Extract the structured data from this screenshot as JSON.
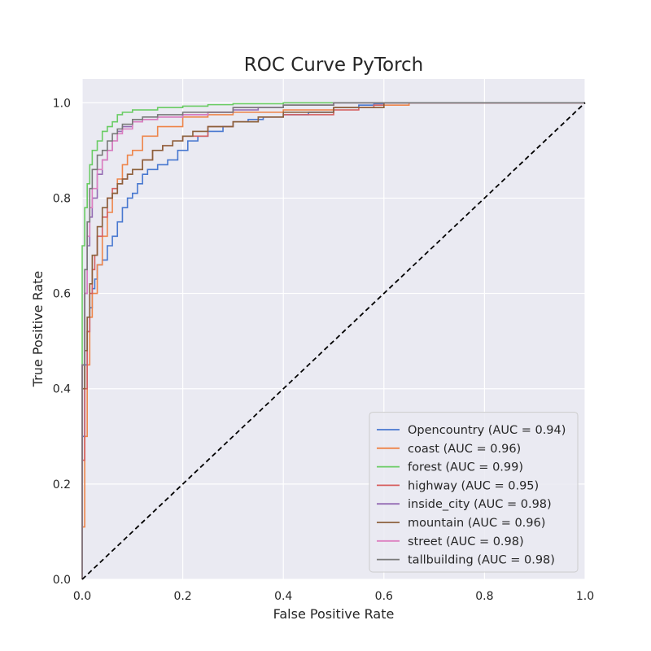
{
  "chart_data": {
    "type": "line",
    "title": "ROC Curve PyTorch",
    "xlabel": "False Positive Rate",
    "ylabel": "True Positive Rate",
    "xlim": [
      0.0,
      1.0
    ],
    "ylim": [
      0.0,
      1.05
    ],
    "xticks": [
      "0.0",
      "0.2",
      "0.4",
      "0.6",
      "0.8",
      "1.0"
    ],
    "yticks": [
      "0.0",
      "0.2",
      "0.4",
      "0.6",
      "0.8",
      "1.0"
    ],
    "grid": true,
    "legend_position": "lower-right",
    "background_color": "#eaeaf2",
    "grid_color": "#ffffff",
    "diagonal": {
      "x": [
        0,
        1
      ],
      "y": [
        0,
        1
      ],
      "style": "dashed",
      "color": "#000000"
    },
    "series": [
      {
        "name": "Opencountry (AUC = 0.94)",
        "color": "#4878d0",
        "x": [
          0,
          0,
          0.005,
          0.01,
          0.015,
          0.02,
          0.025,
          0.03,
          0.04,
          0.05,
          0.06,
          0.07,
          0.08,
          0.09,
          0.1,
          0.11,
          0.12,
          0.13,
          0.15,
          0.17,
          0.19,
          0.21,
          0.23,
          0.25,
          0.28,
          0.3,
          0.33,
          0.36,
          0.4,
          0.45,
          0.5,
          0.55,
          0.58,
          0.6,
          0.65,
          1.0
        ],
        "y": [
          0,
          0.3,
          0.45,
          0.52,
          0.57,
          0.61,
          0.63,
          0.66,
          0.67,
          0.7,
          0.72,
          0.75,
          0.78,
          0.8,
          0.81,
          0.83,
          0.85,
          0.86,
          0.87,
          0.88,
          0.9,
          0.92,
          0.93,
          0.94,
          0.95,
          0.96,
          0.965,
          0.97,
          0.975,
          0.98,
          0.99,
          0.995,
          0.998,
          1.0,
          1.0,
          1.0
        ]
      },
      {
        "name": "coast (AUC = 0.96)",
        "color": "#ee854a",
        "x": [
          0,
          0,
          0.005,
          0.01,
          0.015,
          0.02,
          0.03,
          0.04,
          0.05,
          0.06,
          0.07,
          0.08,
          0.09,
          0.1,
          0.12,
          0.15,
          0.2,
          0.25,
          0.3,
          0.4,
          0.5,
          0.6,
          0.65,
          1.0
        ],
        "y": [
          0,
          0.11,
          0.3,
          0.45,
          0.55,
          0.6,
          0.66,
          0.72,
          0.77,
          0.81,
          0.84,
          0.87,
          0.89,
          0.9,
          0.93,
          0.95,
          0.97,
          0.975,
          0.98,
          0.985,
          0.99,
          0.995,
          1.0,
          1.0
        ]
      },
      {
        "name": "forest (AUC = 0.99)",
        "color": "#6acc64",
        "x": [
          0,
          0,
          0.005,
          0.01,
          0.015,
          0.02,
          0.03,
          0.04,
          0.05,
          0.06,
          0.07,
          0.08,
          0.1,
          0.15,
          0.2,
          0.25,
          0.3,
          0.4,
          1.0
        ],
        "y": [
          0,
          0.7,
          0.78,
          0.83,
          0.87,
          0.9,
          0.92,
          0.94,
          0.95,
          0.96,
          0.975,
          0.98,
          0.985,
          0.99,
          0.993,
          0.996,
          0.998,
          1.0,
          1.0
        ]
      },
      {
        "name": "highway (AUC = 0.95)",
        "color": "#d65f5f",
        "x": [
          0,
          0,
          0.005,
          0.01,
          0.015,
          0.02,
          0.025,
          0.03,
          0.04,
          0.05,
          0.06,
          0.07,
          0.08,
          0.09,
          0.1,
          0.12,
          0.14,
          0.16,
          0.18,
          0.2,
          0.25,
          0.3,
          0.35,
          0.4,
          0.5,
          0.55,
          0.58,
          0.6,
          1.0
        ],
        "y": [
          0,
          0.25,
          0.4,
          0.52,
          0.6,
          0.65,
          0.68,
          0.72,
          0.76,
          0.8,
          0.82,
          0.83,
          0.84,
          0.85,
          0.86,
          0.88,
          0.9,
          0.91,
          0.92,
          0.93,
          0.95,
          0.96,
          0.97,
          0.975,
          0.985,
          0.99,
          0.995,
          1.0,
          1.0
        ]
      },
      {
        "name": "inside_city (AUC = 0.98)",
        "color": "#956cb4",
        "x": [
          0,
          0,
          0.005,
          0.01,
          0.015,
          0.02,
          0.03,
          0.04,
          0.05,
          0.06,
          0.07,
          0.08,
          0.1,
          0.12,
          0.15,
          0.2,
          0.25,
          0.3,
          0.35,
          0.4,
          0.5,
          1.0
        ],
        "y": [
          0,
          0.45,
          0.6,
          0.7,
          0.76,
          0.8,
          0.85,
          0.88,
          0.9,
          0.92,
          0.94,
          0.95,
          0.96,
          0.965,
          0.97,
          0.975,
          0.98,
          0.985,
          0.99,
          0.995,
          1.0,
          1.0
        ]
      },
      {
        "name": "mountain (AUC = 0.96)",
        "color": "#8c613c",
        "x": [
          0,
          0,
          0.005,
          0.01,
          0.015,
          0.02,
          0.03,
          0.04,
          0.05,
          0.06,
          0.07,
          0.08,
          0.09,
          0.1,
          0.12,
          0.14,
          0.16,
          0.18,
          0.2,
          0.22,
          0.25,
          0.3,
          0.35,
          0.4,
          0.5,
          0.6,
          1.0
        ],
        "y": [
          0,
          0.4,
          0.48,
          0.55,
          0.62,
          0.68,
          0.74,
          0.78,
          0.8,
          0.81,
          0.83,
          0.84,
          0.85,
          0.86,
          0.88,
          0.9,
          0.91,
          0.92,
          0.93,
          0.94,
          0.95,
          0.96,
          0.97,
          0.98,
          0.99,
          1.0,
          1.0
        ]
      },
      {
        "name": "street (AUC = 0.98)",
        "color": "#dc7ec0",
        "x": [
          0,
          0,
          0.005,
          0.01,
          0.015,
          0.02,
          0.03,
          0.04,
          0.05,
          0.06,
          0.07,
          0.08,
          0.1,
          0.12,
          0.15,
          0.2,
          0.25,
          0.3,
          0.4,
          0.5,
          1.0
        ],
        "y": [
          0,
          0.45,
          0.6,
          0.72,
          0.78,
          0.82,
          0.86,
          0.88,
          0.9,
          0.92,
          0.935,
          0.945,
          0.96,
          0.965,
          0.97,
          0.975,
          0.98,
          0.99,
          0.995,
          1.0,
          1.0
        ]
      },
      {
        "name": "tallbuilding (AUC = 0.98)",
        "color": "#797979",
        "x": [
          0,
          0,
          0.005,
          0.01,
          0.015,
          0.02,
          0.03,
          0.04,
          0.05,
          0.06,
          0.07,
          0.08,
          0.1,
          0.12,
          0.15,
          0.2,
          0.3,
          0.4,
          0.5,
          1.0
        ],
        "y": [
          0,
          0.45,
          0.65,
          0.75,
          0.82,
          0.86,
          0.89,
          0.9,
          0.92,
          0.935,
          0.945,
          0.955,
          0.965,
          0.97,
          0.975,
          0.98,
          0.99,
          0.995,
          1.0,
          1.0
        ]
      }
    ]
  }
}
